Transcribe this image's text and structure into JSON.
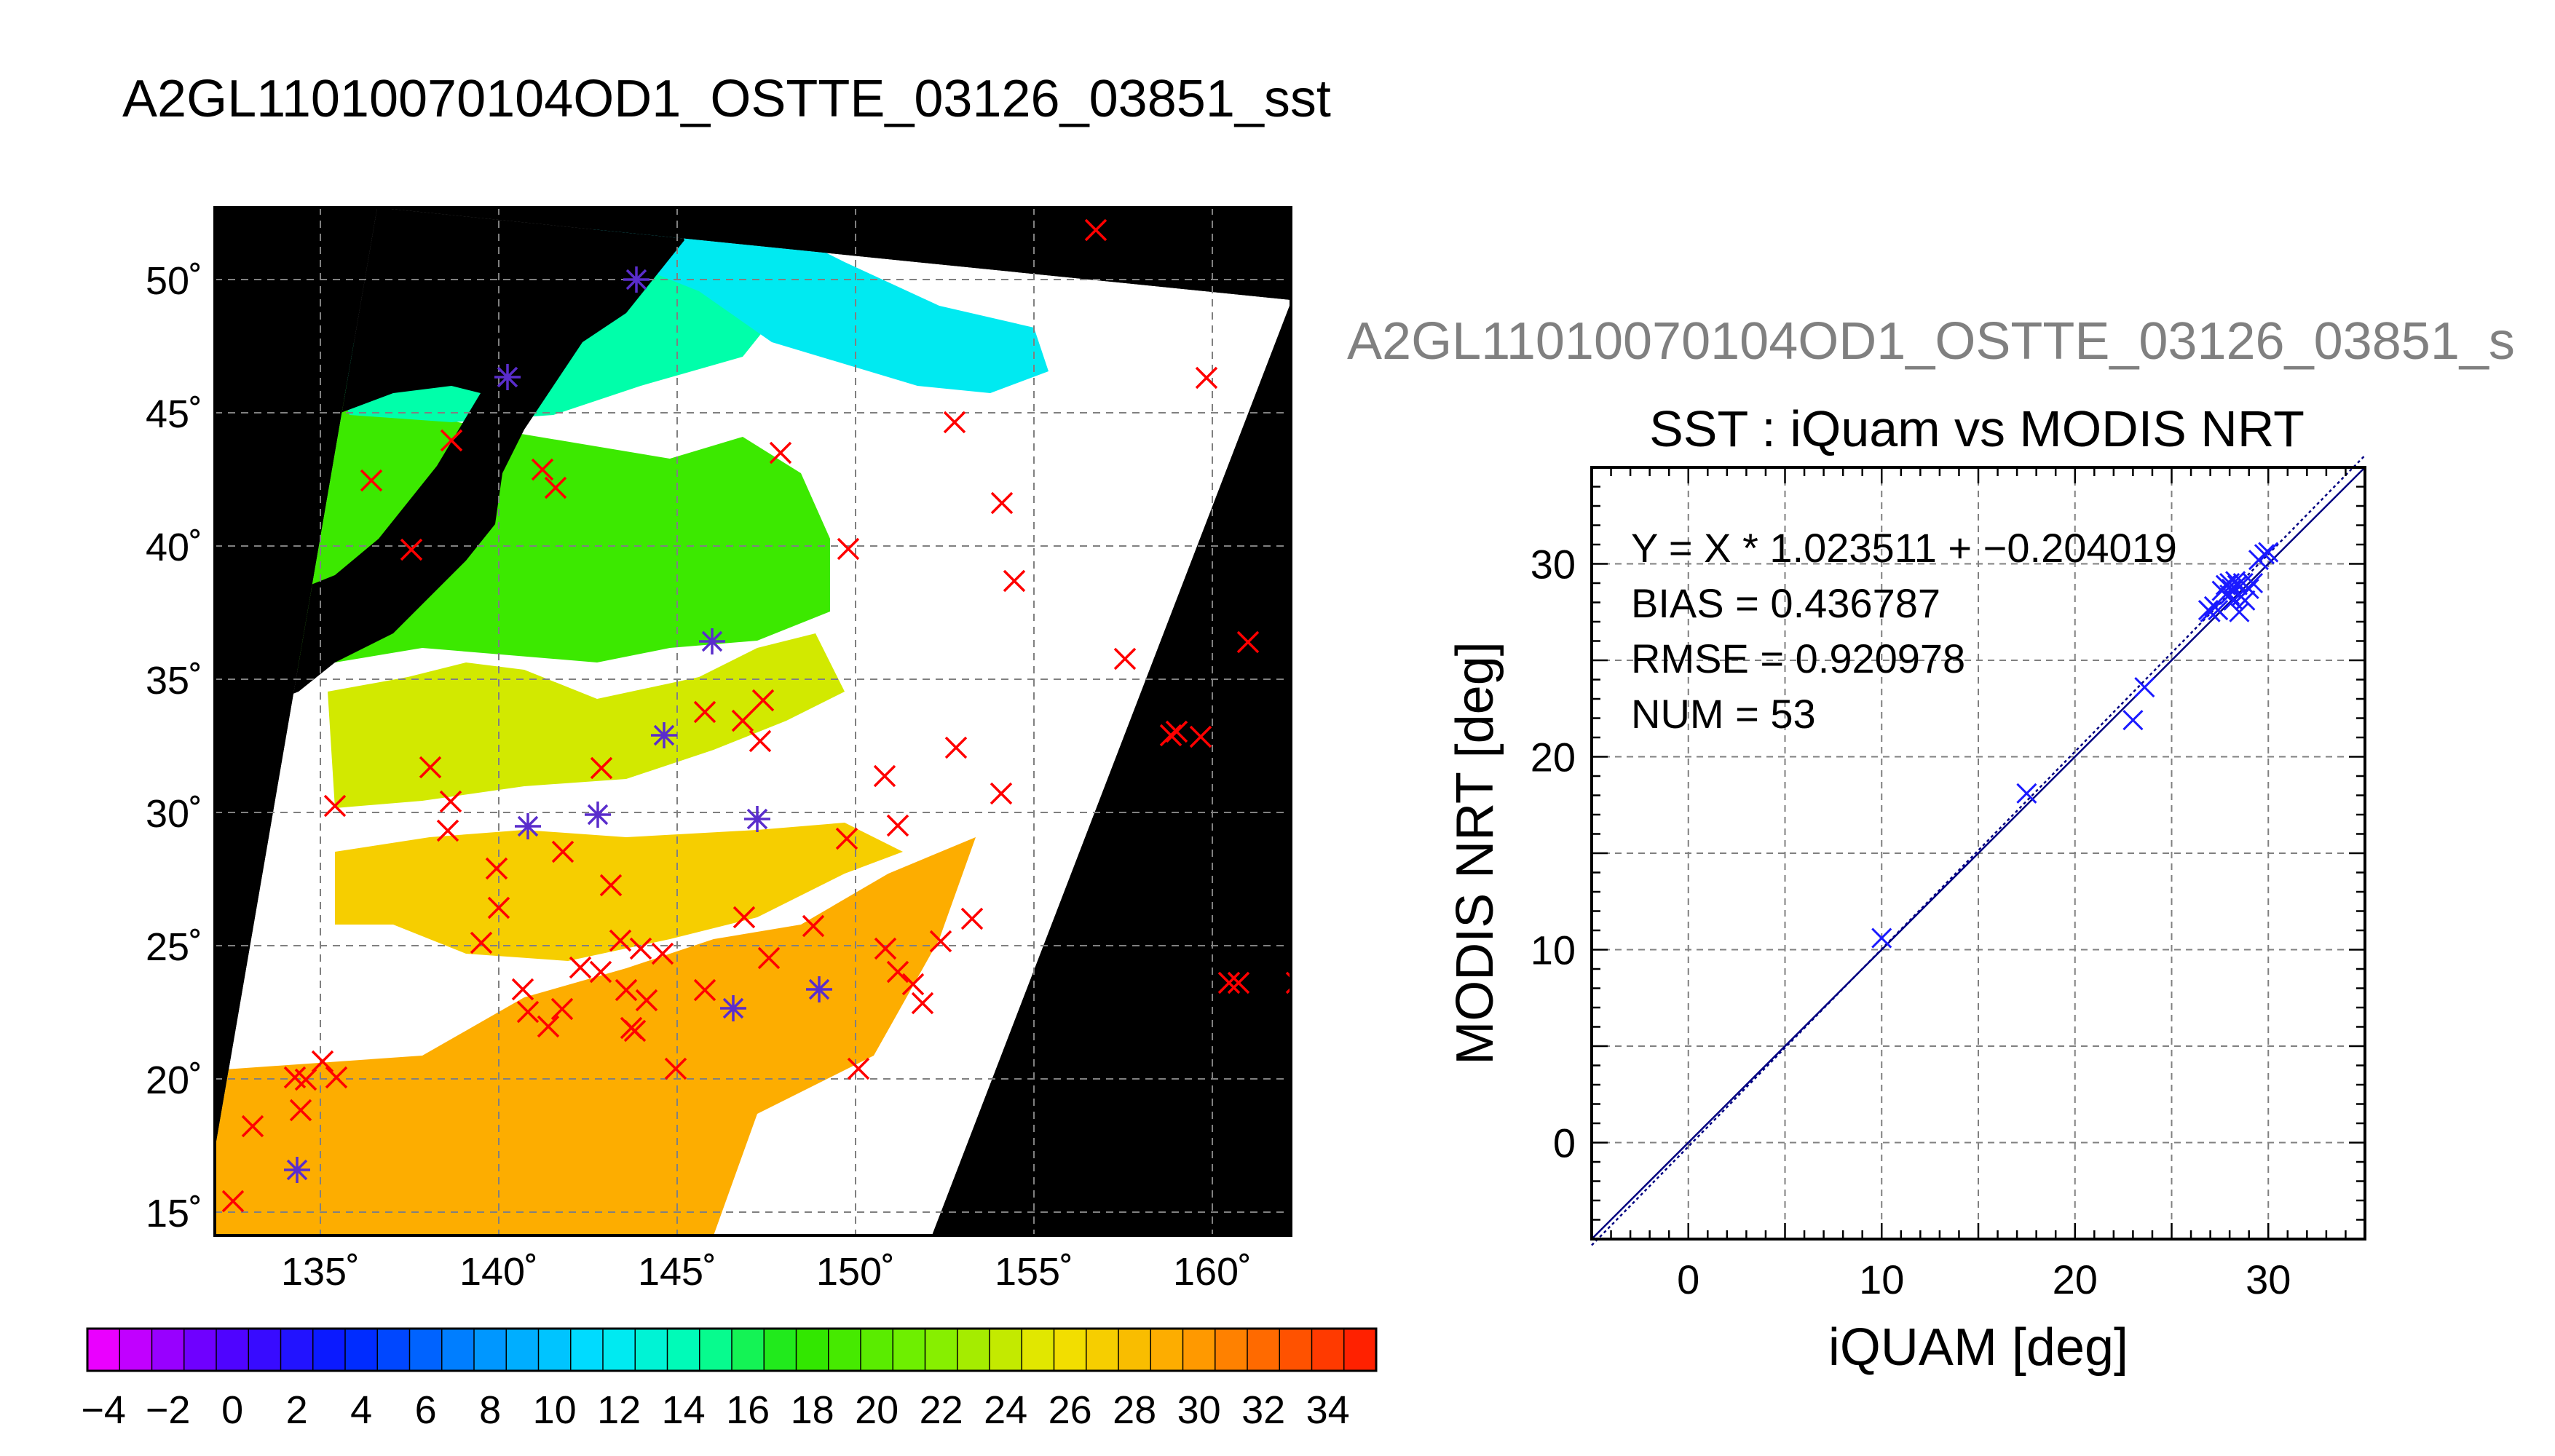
{
  "page_title": "A2GL11010070104OD1_OSTTE_03126_03851_sst",
  "colors": {
    "land": "#000000",
    "cloud": "#ffffff",
    "insitu_marker": "#ff0000",
    "matchup_marker": "#1a1aff",
    "fit_line": "#000080",
    "grid": "#808080"
  },
  "map": {
    "lat_ticks": [
      "15˚",
      "20˚",
      "25˚",
      "30˚",
      "35˚",
      "40˚",
      "45˚",
      "50˚"
    ],
    "lon_ticks": [
      "135˚",
      "140˚",
      "145˚",
      "150˚",
      "155˚",
      "160˚"
    ]
  },
  "colorbar": {
    "tick_labels": [
      "−4",
      "−2",
      "0",
      "2",
      "4",
      "6",
      "8",
      "10",
      "12",
      "14",
      "16",
      "18",
      "20",
      "22",
      "24",
      "26",
      "28",
      "30",
      "32",
      "34"
    ],
    "range": [
      -4,
      36
    ]
  },
  "chart_data": {
    "type": "scatter",
    "filename_label": "A2GL11010070104OD1_OSTTE_03126_03851_s",
    "title": "SST : iQuam vs MODIS NRT",
    "xlabel": "iQUAM [deg]",
    "ylabel": "MODIS NRT [deg]",
    "xlim": [
      -5,
      35
    ],
    "ylim": [
      -5,
      35
    ],
    "xticks": [
      0,
      10,
      20,
      30
    ],
    "yticks": [
      0,
      10,
      20,
      30
    ],
    "grid": true,
    "stats": {
      "fit": "Y = X * 1.023511 + −0.204019",
      "bias": "BIAS = 0.436787",
      "rmse": "RMSE = 0.920978",
      "num": "NUM = 53"
    },
    "fit_slope": 1.023511,
    "fit_intercept": -0.204019,
    "series": [
      {
        "points": [
          [
            10.0,
            10.6
          ],
          [
            17.5,
            18.1
          ],
          [
            23.0,
            21.9
          ],
          [
            23.6,
            23.6
          ],
          [
            26.9,
            27.6
          ],
          [
            27.0,
            27.5
          ],
          [
            27.2,
            27.8
          ],
          [
            27.4,
            27.6
          ],
          [
            27.6,
            28.6
          ],
          [
            27.8,
            28.9
          ],
          [
            28.0,
            28.4
          ],
          [
            28.0,
            29.0
          ],
          [
            28.1,
            28.7
          ],
          [
            28.2,
            28.1
          ],
          [
            28.3,
            29.1
          ],
          [
            28.4,
            28.9
          ],
          [
            28.5,
            27.5
          ],
          [
            28.6,
            28.3
          ],
          [
            28.7,
            29.0
          ],
          [
            28.8,
            28.1
          ],
          [
            29.0,
            28.7
          ],
          [
            29.2,
            29.0
          ],
          [
            29.5,
            30.2
          ],
          [
            29.8,
            30.5
          ],
          [
            30.0,
            30.6
          ]
        ]
      }
    ]
  }
}
